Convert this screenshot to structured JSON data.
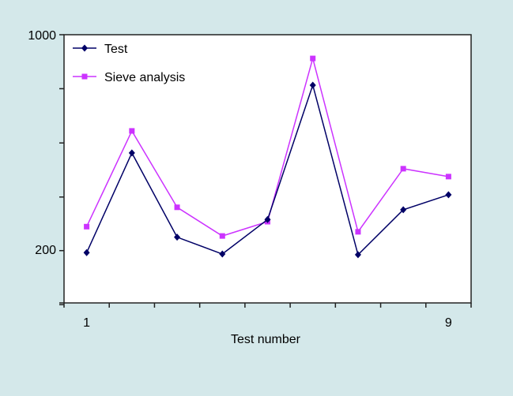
{
  "chart_data": {
    "type": "line",
    "title": "",
    "xlabel": "Test number",
    "ylabel": "",
    "yscale": "log",
    "ylim": [
      132,
      1000
    ],
    "y_tick_labels": [
      {
        "value": 1000,
        "label": "1000"
      },
      {
        "value": 200,
        "label": "200"
      }
    ],
    "y_ticks": [
      1000,
      667,
      444,
      296,
      198,
      132
    ],
    "categories": [
      "1",
      "2",
      "3",
      "4",
      "5",
      "6",
      "7",
      "8",
      "9"
    ],
    "x_tick_labels": [
      {
        "index": 0,
        "label": "1"
      },
      {
        "index": 8,
        "label": "9"
      }
    ],
    "grid": false,
    "legend_position": "upper-left-inside",
    "series": [
      {
        "name": "Test",
        "color": "#000066",
        "marker": "diamond",
        "values": [
          195,
          412,
          219,
          193,
          250,
          685,
          192,
          269,
          301
        ]
      },
      {
        "name": "Sieve analysis",
        "color": "#cc33ff",
        "marker": "square",
        "values": [
          237,
          486,
          274,
          221,
          246,
          837,
          228,
          366,
          345
        ]
      }
    ]
  },
  "colors": {
    "background": "#d4e8ea",
    "plot_background": "#ffffff",
    "axis": "#222222"
  }
}
